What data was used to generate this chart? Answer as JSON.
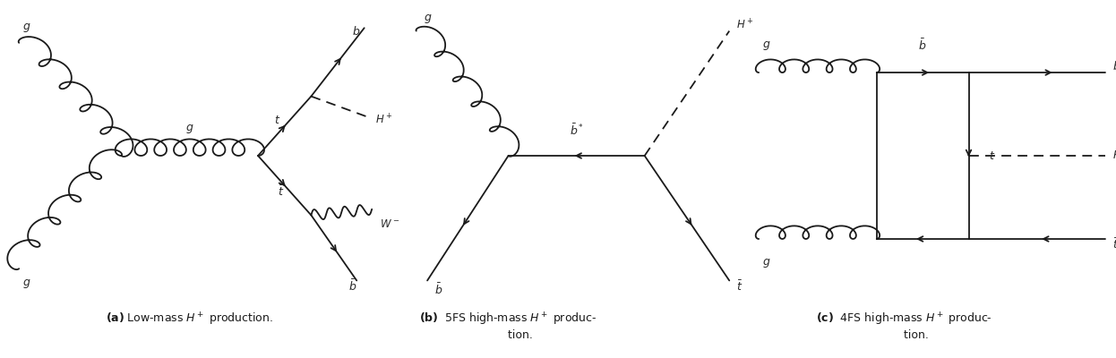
{
  "bg_color": "#ffffff",
  "line_color": "#1a1a1a",
  "fig_width": 12.46,
  "fig_height": 4.0
}
